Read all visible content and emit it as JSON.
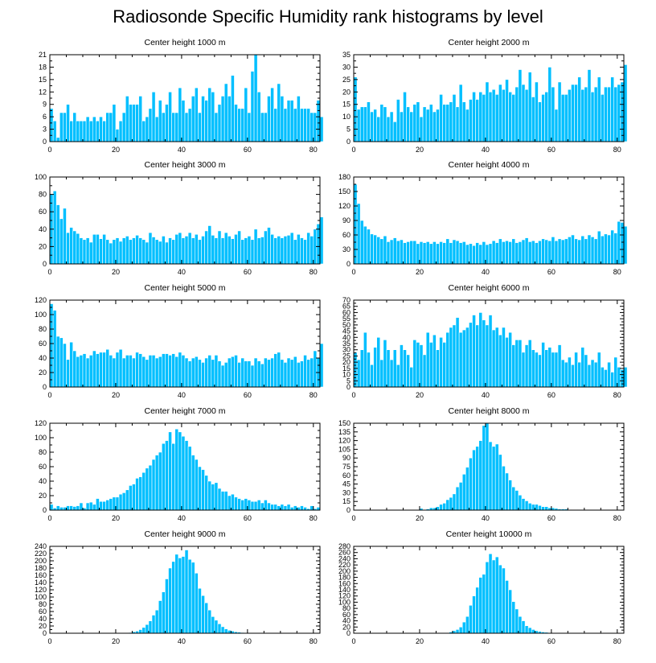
{
  "title": "Radiosonde Specific Humidity rank histograms by level",
  "colors": {
    "bar": "#00bfff",
    "axis": "#000000",
    "background": "#ffffff"
  },
  "chart_data": [
    {
      "type": "bar",
      "title": "Center height 1000 m",
      "xlim": [
        0,
        82
      ],
      "xticks": [
        0,
        20,
        40,
        60,
        80
      ],
      "ylim": [
        0,
        21
      ],
      "yticks": [
        0,
        3,
        6,
        9,
        12,
        15,
        18,
        21
      ],
      "values": [
        8,
        5,
        1,
        7,
        7,
        9,
        5,
        7,
        5,
        5,
        5,
        6,
        5,
        6,
        5,
        6,
        5,
        7,
        7,
        9,
        3,
        5,
        7,
        11,
        9,
        9,
        9,
        11,
        5,
        6,
        8,
        12,
        6,
        10,
        7,
        9,
        12,
        7,
        7,
        13,
        10,
        7,
        8,
        11,
        13,
        7,
        11,
        10,
        13,
        12,
        7,
        9,
        11,
        14,
        11,
        16,
        9,
        8,
        8,
        13,
        7,
        17,
        21,
        12,
        7,
        7,
        11,
        13,
        8,
        14,
        11,
        8,
        10,
        10,
        8,
        11,
        8,
        8,
        8,
        7,
        7,
        10,
        6
      ]
    },
    {
      "type": "bar",
      "title": "Center height 2000 m",
      "xlim": [
        0,
        82
      ],
      "xticks": [
        0,
        20,
        40,
        60,
        80
      ],
      "ylim": [
        0,
        35
      ],
      "yticks": [
        0,
        5,
        10,
        15,
        20,
        25,
        30,
        35
      ],
      "values": [
        26,
        13,
        14,
        14,
        16,
        12,
        13,
        10,
        15,
        14,
        10,
        12,
        8,
        17,
        12,
        20,
        14,
        12,
        15,
        16,
        10,
        14,
        13,
        15,
        12,
        13,
        19,
        15,
        15,
        16,
        19,
        14,
        23,
        16,
        13,
        17,
        20,
        17,
        20,
        19,
        24,
        20,
        21,
        19,
        23,
        21,
        25,
        20,
        19,
        22,
        29,
        23,
        21,
        28,
        18,
        24,
        16,
        19,
        20,
        30,
        22,
        13,
        24,
        19,
        19,
        21,
        23,
        23,
        26,
        21,
        22,
        29,
        20,
        22,
        26,
        19,
        22,
        22,
        26,
        22,
        23,
        24,
        31
      ]
    },
    {
      "type": "bar",
      "title": "Center height 3000 m",
      "xlim": [
        0,
        82
      ],
      "xticks": [
        0,
        20,
        40,
        60,
        80
      ],
      "ylim": [
        0,
        100
      ],
      "yticks": [
        0,
        20,
        40,
        60,
        80,
        100
      ],
      "values": [
        80,
        84,
        68,
        52,
        64,
        36,
        42,
        38,
        35,
        30,
        28,
        30,
        25,
        34,
        34,
        29,
        34,
        28,
        24,
        28,
        30,
        26,
        30,
        32,
        28,
        30,
        33,
        30,
        28,
        25,
        36,
        31,
        28,
        26,
        32,
        25,
        30,
        28,
        34,
        36,
        30,
        32,
        36,
        30,
        34,
        28,
        32,
        38,
        44,
        33,
        30,
        38,
        30,
        36,
        32,
        29,
        34,
        38,
        28,
        30,
        32,
        28,
        40,
        30,
        31,
        38,
        42,
        34,
        30,
        32,
        30,
        32,
        33,
        36,
        28,
        34,
        30,
        28,
        36,
        32,
        40,
        46,
        54
      ]
    },
    {
      "type": "bar",
      "title": "Center height 4000 m",
      "xlim": [
        0,
        82
      ],
      "xticks": [
        0,
        20,
        40,
        60,
        80
      ],
      "ylim": [
        0,
        180
      ],
      "yticks": [
        0,
        30,
        60,
        90,
        120,
        150,
        180
      ],
      "values": [
        165,
        125,
        90,
        78,
        72,
        62,
        60,
        56,
        52,
        58,
        46,
        50,
        54,
        48,
        50,
        44,
        46,
        48,
        48,
        42,
        46,
        44,
        46,
        42,
        46,
        42,
        46,
        44,
        52,
        44,
        50,
        48,
        44,
        46,
        40,
        42,
        38,
        44,
        40,
        46,
        40,
        42,
        48,
        44,
        52,
        46,
        48,
        46,
        52,
        44,
        46,
        50,
        54,
        46,
        48,
        44,
        48,
        52,
        50,
        48,
        56,
        48,
        52,
        50,
        52,
        56,
        60,
        52,
        50,
        58,
        52,
        60,
        56,
        52,
        68,
        58,
        62,
        60,
        70,
        64,
        88,
        86,
        78
      ]
    },
    {
      "type": "bar",
      "title": "Center height 5000 m",
      "xlim": [
        0,
        82
      ],
      "xticks": [
        0,
        20,
        40,
        60,
        80
      ],
      "ylim": [
        0,
        120
      ],
      "yticks": [
        0,
        20,
        40,
        60,
        80,
        100,
        120
      ],
      "values": [
        115,
        106,
        70,
        68,
        60,
        38,
        62,
        50,
        42,
        44,
        46,
        40,
        44,
        50,
        46,
        48,
        48,
        52,
        44,
        40,
        48,
        52,
        40,
        44,
        44,
        40,
        48,
        46,
        42,
        38,
        44,
        44,
        40,
        42,
        46,
        46,
        44,
        46,
        42,
        48,
        44,
        40,
        36,
        40,
        42,
        38,
        34,
        40,
        44,
        38,
        44,
        36,
        30,
        34,
        40,
        42,
        44,
        34,
        40,
        36,
        36,
        30,
        40,
        36,
        32,
        40,
        38,
        40,
        46,
        48,
        38,
        34,
        40,
        38,
        42,
        34,
        36,
        44,
        38,
        40,
        50,
        40,
        60
      ]
    },
    {
      "type": "bar",
      "title": "Center height 6000 m",
      "xlim": [
        0,
        82
      ],
      "xticks": [
        0,
        20,
        40,
        60,
        80
      ],
      "ylim": [
        0,
        70
      ],
      "yticks": [
        0,
        5,
        10,
        15,
        20,
        25,
        30,
        35,
        40,
        45,
        50,
        55,
        60,
        65,
        70
      ],
      "values": [
        28,
        22,
        30,
        44,
        28,
        18,
        32,
        40,
        22,
        38,
        30,
        22,
        30,
        18,
        34,
        30,
        26,
        16,
        38,
        36,
        34,
        26,
        44,
        36,
        42,
        30,
        40,
        36,
        44,
        48,
        50,
        56,
        44,
        46,
        48,
        52,
        58,
        50,
        60,
        54,
        50,
        58,
        46,
        48,
        42,
        48,
        40,
        44,
        34,
        38,
        38,
        28,
        34,
        38,
        30,
        28,
        26,
        36,
        30,
        32,
        28,
        28,
        34,
        22,
        20,
        24,
        18,
        28,
        20,
        32,
        26,
        18,
        22,
        20,
        28,
        16,
        14,
        20,
        12,
        24,
        16,
        14,
        16
      ]
    },
    {
      "type": "bar",
      "title": "Center height 7000 m",
      "xlim": [
        0,
        82
      ],
      "xticks": [
        0,
        20,
        40,
        60,
        80
      ],
      "ylim": [
        0,
        120
      ],
      "yticks": [
        0,
        20,
        40,
        60,
        80,
        100,
        120
      ],
      "values": [
        8,
        3,
        6,
        4,
        4,
        6,
        6,
        5,
        6,
        10,
        3,
        10,
        11,
        8,
        16,
        12,
        12,
        14,
        16,
        18,
        18,
        22,
        24,
        28,
        34,
        36,
        44,
        46,
        52,
        58,
        62,
        70,
        76,
        80,
        92,
        96,
        108,
        92,
        112,
        108,
        102,
        96,
        88,
        76,
        70,
        60,
        56,
        48,
        40,
        36,
        38,
        30,
        26,
        26,
        20,
        22,
        18,
        16,
        14,
        16,
        14,
        12,
        12,
        14,
        10,
        14,
        10,
        8,
        8,
        6,
        8,
        6,
        8,
        4,
        6,
        4,
        6,
        4,
        2,
        6,
        2,
        4,
        0
      ]
    },
    {
      "type": "bar",
      "title": "Center height 8000 m",
      "xlim": [
        0,
        82
      ],
      "xticks": [
        0,
        20,
        40,
        60,
        80
      ],
      "ylim": [
        0,
        150
      ],
      "yticks": [
        0,
        15,
        30,
        45,
        60,
        75,
        90,
        105,
        120,
        135,
        150
      ],
      "values": [
        0,
        0,
        0,
        0,
        0,
        0,
        0,
        0,
        0,
        0,
        0,
        0,
        0,
        0,
        0,
        0,
        0,
        0,
        0,
        0,
        3,
        1,
        2,
        4,
        4,
        6,
        10,
        12,
        18,
        22,
        28,
        40,
        48,
        62,
        74,
        90,
        104,
        110,
        120,
        146,
        150,
        118,
        110,
        114,
        96,
        76,
        64,
        52,
        40,
        34,
        26,
        20,
        16,
        12,
        10,
        10,
        8,
        6,
        6,
        4,
        4,
        3,
        2,
        2,
        2,
        1,
        1,
        1,
        0,
        0,
        0,
        0,
        0,
        0,
        0,
        0,
        0,
        0,
        0,
        0,
        0,
        0,
        0
      ]
    },
    {
      "type": "bar",
      "title": "Center height 9000 m",
      "xlim": [
        0,
        82
      ],
      "xticks": [
        0,
        20,
        40,
        60,
        80
      ],
      "ylim": [
        0,
        240
      ],
      "yticks": [
        0,
        20,
        40,
        60,
        80,
        100,
        120,
        140,
        160,
        180,
        200,
        220,
        240
      ],
      "values": [
        0,
        0,
        0,
        0,
        0,
        0,
        0,
        0,
        0,
        0,
        0,
        0,
        0,
        0,
        0,
        0,
        0,
        0,
        0,
        0,
        0,
        0,
        0,
        1,
        2,
        4,
        6,
        10,
        16,
        24,
        34,
        50,
        64,
        90,
        114,
        150,
        180,
        198,
        218,
        208,
        212,
        230,
        204,
        196,
        166,
        124,
        104,
        84,
        64,
        46,
        36,
        26,
        18,
        12,
        8,
        6,
        4,
        3,
        2,
        1,
        1,
        1,
        1,
        0,
        0,
        0,
        0,
        0,
        0,
        0,
        0,
        0,
        0,
        0,
        0,
        0,
        0,
        0,
        0,
        0,
        0,
        0,
        0
      ]
    },
    {
      "type": "bar",
      "title": "Center height 10000 m",
      "xlim": [
        0,
        82
      ],
      "xticks": [
        0,
        20,
        40,
        60,
        80
      ],
      "ylim": [
        0,
        280
      ],
      "yticks": [
        0,
        20,
        40,
        60,
        80,
        100,
        120,
        140,
        160,
        180,
        200,
        220,
        240,
        260,
        280
      ],
      "values": [
        0,
        0,
        0,
        0,
        0,
        0,
        0,
        0,
        0,
        0,
        0,
        0,
        0,
        0,
        0,
        0,
        0,
        0,
        0,
        0,
        0,
        0,
        0,
        0,
        0,
        0,
        0,
        1,
        2,
        4,
        8,
        12,
        20,
        36,
        54,
        90,
        120,
        148,
        180,
        190,
        230,
        256,
        236,
        246,
        220,
        210,
        170,
        140,
        102,
        78,
        54,
        40,
        24,
        18,
        12,
        8,
        6,
        4,
        3,
        2,
        2,
        1,
        1,
        0,
        0,
        0,
        0,
        0,
        0,
        0,
        0,
        0,
        0,
        0,
        0,
        0,
        0,
        0,
        0,
        0,
        0,
        0,
        0
      ]
    }
  ]
}
